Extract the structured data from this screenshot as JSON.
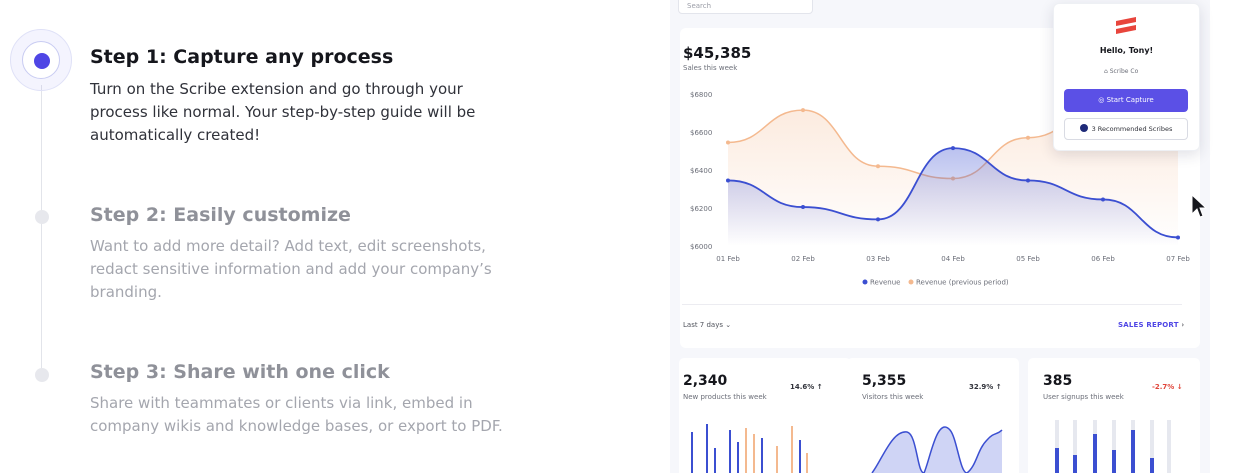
{
  "steps": [
    {
      "title": "Step 1: Capture any process",
      "desc": "Turn on the Scribe extension and go through your process like normal. Your step-by-step guide will be automatically created!",
      "active": true
    },
    {
      "title": "Step 2: Easily customize",
      "desc": "Want to add more detail? Add text, edit screenshots, redact sensitive information and add your company’s branding.",
      "active": false
    },
    {
      "title": "Step 3: Share with one click",
      "desc": "Share with teammates or clients via link, embed in company wikis and knowledge bases, or export to PDF.",
      "active": false
    }
  ],
  "dashboard": {
    "search_placeholder": "Search",
    "sales_value": "$45,385",
    "sales_label": "Sales this week",
    "range_label": "Last 7 days",
    "sales_report_label": "SALES REPORT",
    "stats": [
      {
        "value": "2,340",
        "label": "New products this week",
        "change": "14.6%",
        "direction": "up"
      },
      {
        "value": "5,355",
        "label": "Visitors this week",
        "change": "32.9%",
        "direction": "up"
      },
      {
        "value": "385",
        "label": "User signups this week",
        "change": "-2.7%",
        "direction": "down"
      }
    ]
  },
  "popup": {
    "greeting": "Hello, Tony!",
    "org": "Scribe Co",
    "capture_label": "Start Capture",
    "recommended_label": "3 Recommended Scribes"
  },
  "colors": {
    "accent": "#4f46e5",
    "revenue": "#3b4fd1",
    "previous": "#f4b98f",
    "brand_red": "#e8453c"
  },
  "chart_data": {
    "type": "line",
    "categories": [
      "01 Feb",
      "02 Feb",
      "03 Feb",
      "04 Feb",
      "05 Feb",
      "06 Feb",
      "07 Feb"
    ],
    "series": [
      {
        "name": "Revenue",
        "values": [
          6345,
          6205,
          6140,
          6515,
          6345,
          6245,
          6045
        ]
      },
      {
        "name": "Revenue (previous period)",
        "values": [
          6545,
          6715,
          6420,
          6355,
          6570,
          6730,
          6880
        ]
      }
    ],
    "yticks": [
      "$6800",
      "$6600",
      "$6400",
      "$6200",
      "$6000"
    ],
    "ylim": [
      6000,
      6800
    ],
    "legend_position": "bottom",
    "grid": false
  }
}
